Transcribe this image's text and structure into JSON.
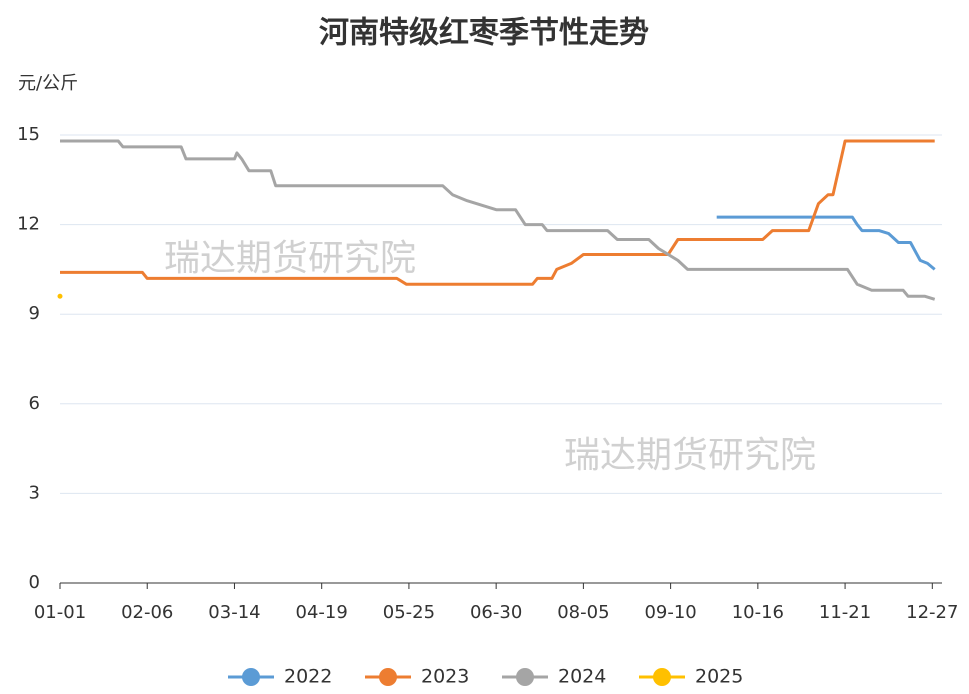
{
  "chart_data": {
    "type": "line",
    "title": "河南特级红枣季节性走势",
    "y_label": "元/公斤",
    "watermarks": [
      "瑞达期货研究院",
      "瑞达期货研究院"
    ],
    "ylim": [
      0,
      15
    ],
    "yticks": [
      0,
      3,
      6,
      9,
      12,
      15
    ],
    "grid": true,
    "xlim": [
      "01-01",
      "12-31"
    ],
    "xticks": [
      "01-01",
      "02-06",
      "03-14",
      "04-19",
      "05-25",
      "06-30",
      "08-05",
      "09-10",
      "10-16",
      "11-21",
      "12-27"
    ],
    "legend": "bottom",
    "series": [
      {
        "name": "2022",
        "color": "#5b9bd5",
        "x": [
          "09-29",
          "11-24",
          "11-26",
          "11-28",
          "12-05",
          "12-09",
          "12-13",
          "12-18",
          "12-22",
          "12-25",
          "12-28"
        ],
        "values": [
          12.25,
          12.25,
          12.0,
          11.8,
          11.8,
          11.7,
          11.4,
          11.4,
          10.8,
          10.7,
          10.5
        ]
      },
      {
        "name": "2023",
        "color": "#ed7d31",
        "x": [
          "01-01",
          "02-04",
          "02-06",
          "05-20",
          "05-24",
          "07-15",
          "07-17",
          "07-23",
          "07-25",
          "07-31",
          "08-05",
          "09-09",
          "09-13",
          "10-18",
          "10-22",
          "11-06",
          "11-10",
          "11-14",
          "11-16",
          "11-21",
          "12-28"
        ],
        "values": [
          10.4,
          10.4,
          10.2,
          10.2,
          10.0,
          10.0,
          10.2,
          10.2,
          10.5,
          10.7,
          11.0,
          11.0,
          11.5,
          11.5,
          11.8,
          11.8,
          12.7,
          13.0,
          13.0,
          14.8,
          14.8
        ]
      },
      {
        "name": "2024",
        "color": "#a5a5a5",
        "x": [
          "01-01",
          "01-25",
          "01-27",
          "02-20",
          "02-22",
          "03-14",
          "03-15",
          "03-17",
          "03-20",
          "03-29",
          "03-31",
          "06-08",
          "06-12",
          "06-18",
          "06-26",
          "06-30",
          "07-08",
          "07-12",
          "07-19",
          "07-21",
          "08-15",
          "08-19",
          "09-01",
          "09-05",
          "09-13",
          "09-17",
          "11-22",
          "11-26",
          "12-02",
          "12-15",
          "12-17",
          "12-24",
          "12-28"
        ],
        "values": [
          14.8,
          14.8,
          14.6,
          14.6,
          14.2,
          14.2,
          14.4,
          14.2,
          13.8,
          13.8,
          13.3,
          13.3,
          13.0,
          12.8,
          12.6,
          12.5,
          12.5,
          12.0,
          12.0,
          11.8,
          11.8,
          11.5,
          11.5,
          11.2,
          10.8,
          10.5,
          10.5,
          10.0,
          9.8,
          9.8,
          9.6,
          9.6,
          9.5
        ]
      },
      {
        "name": "2025",
        "color": "#ffc000",
        "x": [
          "01-01"
        ],
        "values": [
          9.6
        ]
      }
    ]
  }
}
